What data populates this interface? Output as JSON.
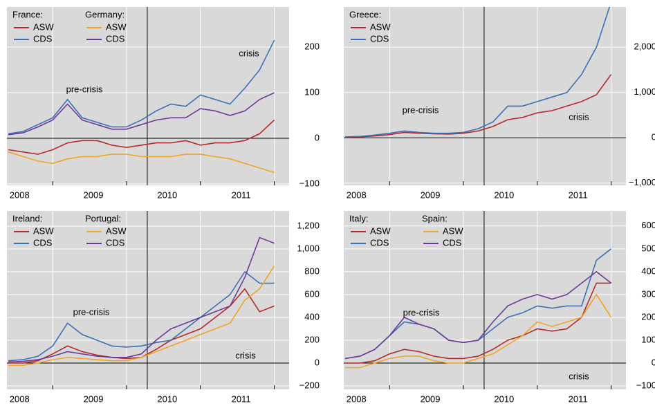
{
  "chart_data": [
    {
      "type": "line",
      "x": [
        2007.9,
        2008.1,
        2008.3,
        2008.5,
        2008.7,
        2008.9,
        2009.1,
        2009.3,
        2009.5,
        2009.7,
        2009.9,
        2010.1,
        2010.3,
        2010.5,
        2010.7,
        2010.9,
        2011.1,
        2011.3,
        2011.5
      ],
      "xlim": [
        2007.88,
        2011.7
      ],
      "xticks": [
        {
          "value": 2008.5,
          "label": "2008"
        },
        {
          "value": 2009.5,
          "label": "2009"
        },
        {
          "value": 2010.5,
          "label": "2010"
        },
        {
          "value": 2011.5,
          "label": "2011"
        }
      ],
      "ylim": [
        -103,
        288
      ],
      "yticks": [
        {
          "value": -100,
          "label": "−100"
        },
        0,
        100,
        200
      ],
      "divider": 2009.78,
      "annotations": [
        "pre-crisis",
        "crisis"
      ],
      "groups": [
        {
          "label": "France:",
          "series": [
            {
              "name": "ASW",
              "color": "#b5292b",
              "values": [
                -25,
                -30,
                -35,
                -25,
                -10,
                -5,
                -5,
                -15,
                -20,
                -15,
                -10,
                -10,
                -5,
                -15,
                -10,
                -10,
                -5,
                10,
                40
              ]
            },
            {
              "name": "CDS",
              "color": "#3b6fb6",
              "values": [
                10,
                15,
                30,
                45,
                85,
                45,
                35,
                25,
                25,
                40,
                60,
                75,
                70,
                95,
                85,
                75,
                110,
                150,
                215
              ]
            }
          ]
        },
        {
          "label": "Germany:",
          "series": [
            {
              "name": "ASW",
              "color": "#f0a429",
              "values": [
                -30,
                -40,
                -50,
                -55,
                -45,
                -40,
                -40,
                -35,
                -35,
                -40,
                -40,
                -40,
                -35,
                -35,
                -40,
                -45,
                -55,
                -65,
                -75
              ]
            },
            {
              "name": "CDS",
              "color": "#6b3a98",
              "values": [
                8,
                12,
                25,
                40,
                75,
                40,
                30,
                20,
                20,
                30,
                40,
                45,
                45,
                65,
                60,
                50,
                60,
                85,
                100
              ]
            }
          ]
        }
      ]
    },
    {
      "type": "line",
      "x": [
        2007.9,
        2008.1,
        2008.3,
        2008.5,
        2008.7,
        2008.9,
        2009.1,
        2009.3,
        2009.5,
        2009.7,
        2009.9,
        2010.1,
        2010.3,
        2010.5,
        2010.7,
        2010.9,
        2011.1,
        2011.3,
        2011.5
      ],
      "xlim": [
        2007.88,
        2011.7
      ],
      "xticks": [
        {
          "value": 2008.5,
          "label": "2008"
        },
        {
          "value": 2009.5,
          "label": "2009"
        },
        {
          "value": 2010.5,
          "label": "2010"
        },
        {
          "value": 2011.5,
          "label": "2011"
        }
      ],
      "ylim": [
        -1050,
        2890
      ],
      "yticks": [
        {
          "value": -1000,
          "label": "−1,000"
        },
        0,
        {
          "value": 1000,
          "label": "1,000"
        },
        {
          "value": 2000,
          "label": "2,000"
        }
      ],
      "divider": 2009.78,
      "annotations": [
        "pre-crisis",
        "crisis"
      ],
      "groups": [
        {
          "label": "Greece:",
          "series": [
            {
              "name": "ASW",
              "color": "#b5292b",
              "values": [
                10,
                20,
                40,
                70,
                120,
                100,
                90,
                80,
                100,
                150,
                250,
                400,
                450,
                550,
                600,
                700,
                800,
                950,
                1400
              ]
            },
            {
              "name": "CDS",
              "color": "#3b6fb6",
              "values": [
                20,
                30,
                60,
                100,
                150,
                120,
                100,
                100,
                120,
                200,
                350,
                700,
                700,
                800,
                900,
                1000,
                1400,
                2000,
                3000
              ]
            }
          ]
        }
      ]
    },
    {
      "type": "line",
      "x": [
        2007.9,
        2008.1,
        2008.3,
        2008.5,
        2008.7,
        2008.9,
        2009.1,
        2009.3,
        2009.5,
        2009.7,
        2009.9,
        2010.1,
        2010.3,
        2010.5,
        2010.7,
        2010.9,
        2011.1,
        2011.3,
        2011.5
      ],
      "xlim": [
        2007.88,
        2011.7
      ],
      "xticks": [
        {
          "value": 2008.5,
          "label": "2008"
        },
        {
          "value": 2009.5,
          "label": "2009"
        },
        {
          "value": 2010.5,
          "label": "2010"
        },
        {
          "value": 2011.5,
          "label": "2011"
        }
      ],
      "ylim": [
        -230,
        1333
      ],
      "yticks": [
        {
          "value": -200,
          "label": "−200"
        },
        0,
        200,
        400,
        600,
        800,
        {
          "value": 1000,
          "label": "1,000"
        },
        {
          "value": 1200,
          "label": "1,200"
        }
      ],
      "divider": 2009.78,
      "annotations": [
        "pre-crisis",
        "crisis"
      ],
      "groups": [
        {
          "label": "Ireland:",
          "series": [
            {
              "name": "ASW",
              "color": "#b5292b",
              "values": [
                0,
                0,
                20,
                80,
                150,
                100,
                70,
                50,
                40,
                50,
                120,
                200,
                250,
                300,
                400,
                500,
                650,
                450,
                500
              ]
            },
            {
              "name": "CDS",
              "color": "#3b6fb6",
              "values": [
                20,
                30,
                60,
                150,
                350,
                250,
                200,
                150,
                140,
                150,
                180,
                200,
                300,
                400,
                500,
                600,
                800,
                700,
                700
              ]
            }
          ]
        },
        {
          "label": "Portugal:",
          "series": [
            {
              "name": "ASW",
              "color": "#f0a429",
              "values": [
                -20,
                -20,
                0,
                30,
                50,
                40,
                30,
                20,
                20,
                50,
                100,
                150,
                200,
                250,
                300,
                350,
                550,
                650,
                850
              ]
            },
            {
              "name": "CDS",
              "color": "#6b3a98",
              "values": [
                10,
                15,
                30,
                60,
                100,
                80,
                60,
                50,
                50,
                80,
                200,
                300,
                350,
                400,
                450,
                500,
                750,
                1100,
                1050
              ]
            }
          ]
        }
      ]
    },
    {
      "type": "line",
      "x": [
        2007.9,
        2008.1,
        2008.3,
        2008.5,
        2008.7,
        2008.9,
        2009.1,
        2009.3,
        2009.5,
        2009.7,
        2009.9,
        2010.1,
        2010.3,
        2010.5,
        2010.7,
        2010.9,
        2011.1,
        2011.3,
        2011.5
      ],
      "xlim": [
        2007.88,
        2011.7
      ],
      "xticks": [
        {
          "value": 2008.5,
          "label": "2008"
        },
        {
          "value": 2009.5,
          "label": "2009"
        },
        {
          "value": 2010.5,
          "label": "2010"
        },
        {
          "value": 2011.5,
          "label": "2011"
        }
      ],
      "ylim": [
        -115,
        666
      ],
      "yticks": [
        {
          "value": -100,
          "label": "−100"
        },
        0,
        100,
        200,
        300,
        400,
        500,
        600
      ],
      "divider": 2009.78,
      "annotations": [
        "pre-crisis",
        "crisis"
      ],
      "groups": [
        {
          "label": "Italy:",
          "series": [
            {
              "name": "ASW",
              "color": "#b5292b",
              "values": [
                0,
                0,
                10,
                40,
                60,
                50,
                30,
                20,
                20,
                30,
                60,
                100,
                120,
                150,
                140,
                150,
                200,
                350,
                350
              ]
            },
            {
              "name": "CDS",
              "color": "#3b6fb6",
              "values": [
                20,
                30,
                60,
                120,
                180,
                170,
                150,
                100,
                90,
                100,
                150,
                200,
                220,
                250,
                240,
                250,
                250,
                450,
                500
              ]
            }
          ]
        },
        {
          "label": "Spain:",
          "series": [
            {
              "name": "ASW",
              "color": "#f0a429",
              "values": [
                -20,
                -20,
                0,
                20,
                30,
                30,
                10,
                0,
                0,
                20,
                40,
                80,
                120,
                180,
                160,
                180,
                200,
                300,
                200
              ]
            },
            {
              "name": "CDS",
              "color": "#6b3a98",
              "values": [
                20,
                30,
                60,
                120,
                200,
                170,
                150,
                100,
                90,
                100,
                180,
                250,
                280,
                300,
                280,
                300,
                350,
                400,
                350
              ]
            }
          ]
        }
      ]
    }
  ]
}
